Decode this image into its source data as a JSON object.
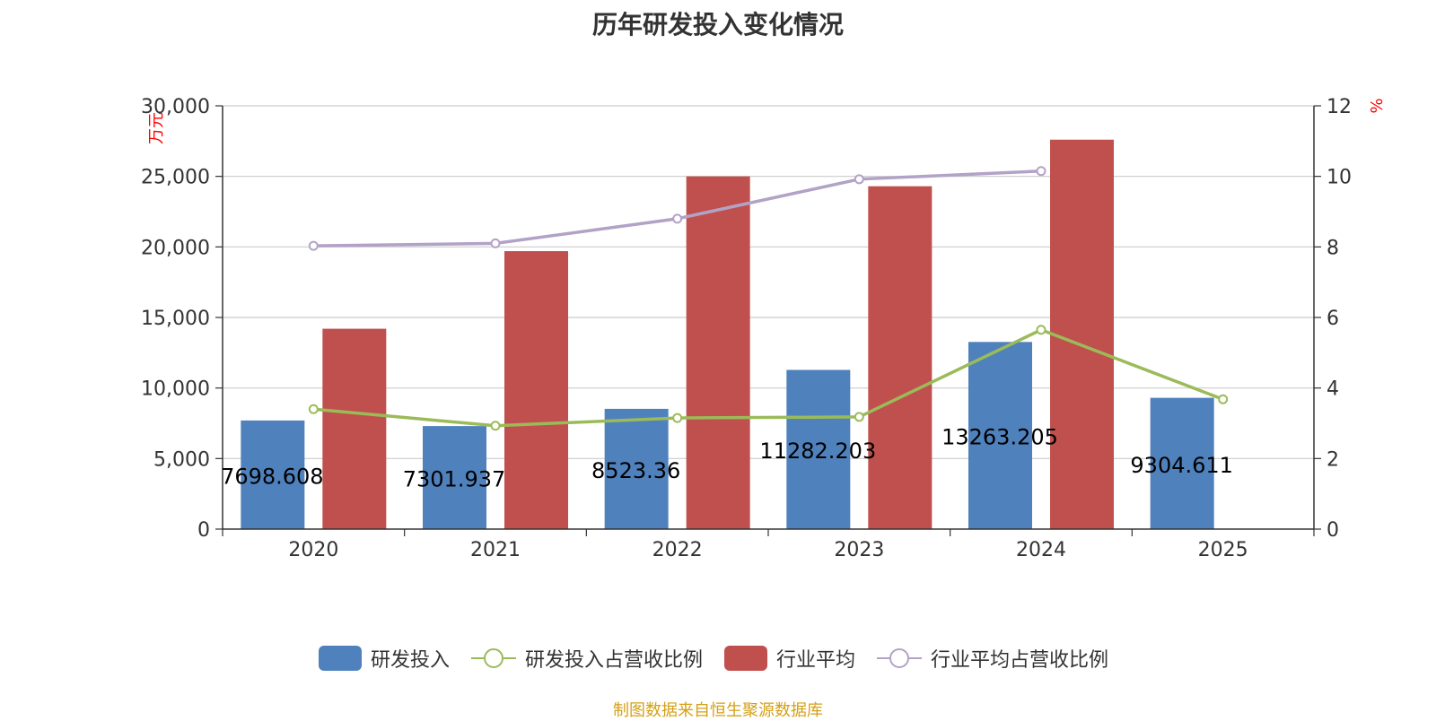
{
  "chart_data": {
    "type": "bar",
    "title": "历年研发投入变化情况",
    "categories": [
      "2020",
      "2021",
      "2022",
      "2023",
      "2024",
      "2025"
    ],
    "y_left": {
      "label": "万元",
      "ticks": [
        "0",
        "5,000",
        "10,000",
        "15,000",
        "20,000",
        "25,000",
        "30,000"
      ],
      "ylim": [
        0,
        30000
      ]
    },
    "y_right": {
      "label": "%",
      "ticks": [
        "0",
        "2",
        "4",
        "6",
        "8",
        "10",
        "12"
      ],
      "ylim": [
        0,
        12
      ]
    },
    "grid": true,
    "legend_position": "bottom",
    "series": [
      {
        "name": "研发投入",
        "type": "bar",
        "axis": "left",
        "color": "#4f81bd",
        "values": [
          7698.608,
          7301.937,
          8523.36,
          11282.203,
          13263.205,
          9304.611
        ],
        "labels": [
          "7698.608",
          "7301.937",
          "8523.36",
          "11282.203",
          "13263.205",
          "9304.611"
        ]
      },
      {
        "name": "研发投入占营收比例",
        "type": "line",
        "axis": "right",
        "color": "#9bbb59",
        "values": [
          3.4,
          2.93,
          3.15,
          3.18,
          5.65,
          3.68
        ]
      },
      {
        "name": "行业平均",
        "type": "bar",
        "axis": "left",
        "color": "#c0504d",
        "values": [
          14200,
          19700,
          25000,
          24300,
          27600,
          null
        ]
      },
      {
        "name": "行业平均占营收比例",
        "type": "line",
        "axis": "right",
        "color": "#b3a2c7",
        "values": [
          8.03,
          8.1,
          8.8,
          9.92,
          10.15,
          null
        ]
      }
    ]
  },
  "source": {
    "text": "制图数据来自恒生聚源数据库",
    "color": "#d4a017"
  },
  "axis_label_color": "#ff0000"
}
